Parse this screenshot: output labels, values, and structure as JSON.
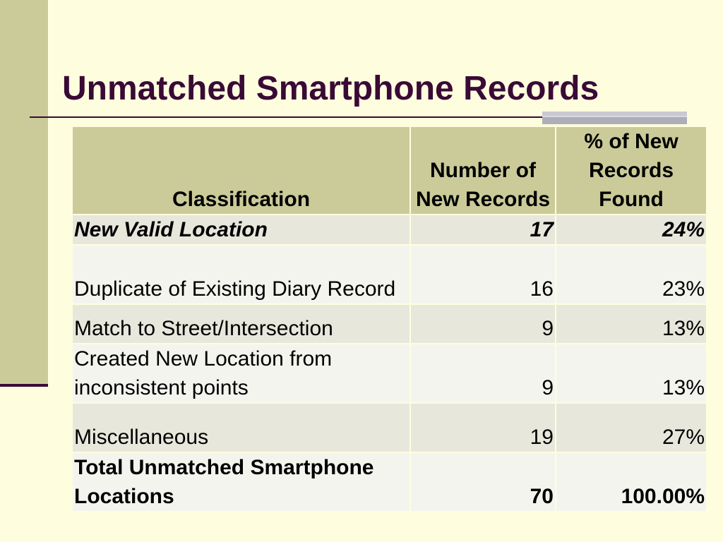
{
  "slide": {
    "title": "Unmatched Smartphone Records"
  },
  "table": {
    "headers": [
      "Classification",
      "Number of New Records",
      "% of New Records Found"
    ],
    "rows": [
      {
        "classification": "New Valid Location",
        "count": "17",
        "percent": "24%"
      },
      {
        "classification": "Duplicate of Existing Diary Record",
        "count": "16",
        "percent": "23%"
      },
      {
        "classification": "Match to Street/Intersection",
        "count": "9",
        "percent": "13%"
      },
      {
        "classification": "Created New Location from inconsistent points",
        "count": "9",
        "percent": "13%"
      },
      {
        "classification": "Miscellaneous",
        "count": "19",
        "percent": "27%"
      },
      {
        "classification": "Total Unmatched Smartphone Locations",
        "count": "70",
        "percent": "100.00%"
      }
    ]
  },
  "colors": {
    "background": "#fefedf",
    "accent_bar": "#cbcb9a",
    "title_text": "#3a0a36",
    "row_shade": "#e7e7dc",
    "row_light": "#f4f4ef"
  }
}
